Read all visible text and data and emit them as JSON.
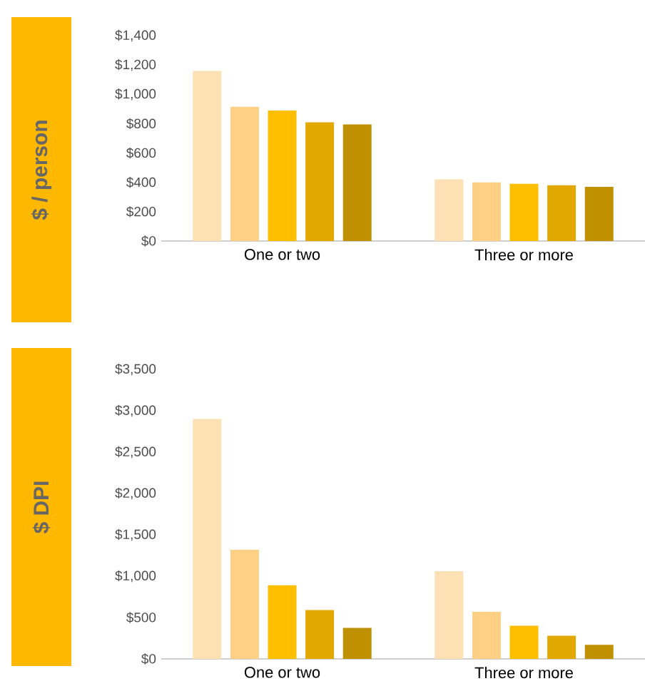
{
  "chart_data": [
    {
      "type": "bar",
      "ylabel": "$ / person",
      "categories": [
        "One or two",
        "Three or more"
      ],
      "series": [
        {
          "color": "#fde0b4",
          "values": [
            1160,
            420
          ]
        },
        {
          "color": "#fdd085",
          "values": [
            915,
            400
          ]
        },
        {
          "color": "#fdbf00",
          "values": [
            890,
            390
          ]
        },
        {
          "color": "#e0a800",
          "values": [
            810,
            380
          ]
        },
        {
          "color": "#bf9000",
          "values": [
            795,
            370
          ]
        }
      ],
      "ylim": [
        0,
        1400
      ],
      "yticks": [
        {
          "value": 0,
          "label": "$0"
        },
        {
          "value": 200,
          "label": "$200"
        },
        {
          "value": 400,
          "label": "$400"
        },
        {
          "value": 600,
          "label": "$600"
        },
        {
          "value": 800,
          "label": "$800"
        },
        {
          "value": 1000,
          "label": "$1,000"
        },
        {
          "value": 1200,
          "label": "$1,200"
        },
        {
          "value": 1400,
          "label": "$1,400"
        }
      ]
    },
    {
      "type": "bar",
      "ylabel": "$ DPI",
      "categories": [
        "One or two",
        "Three or more"
      ],
      "series": [
        {
          "color": "#fde0b4",
          "values": [
            2900,
            1060
          ]
        },
        {
          "color": "#fdd085",
          "values": [
            1320,
            570
          ]
        },
        {
          "color": "#fdbf00",
          "values": [
            890,
            400
          ]
        },
        {
          "color": "#e0a800",
          "values": [
            590,
            280
          ]
        },
        {
          "color": "#bf9000",
          "values": [
            375,
            170
          ]
        }
      ],
      "ylim": [
        0,
        3500
      ],
      "yticks": [
        {
          "value": 0,
          "label": "$0"
        },
        {
          "value": 500,
          "label": "$500"
        },
        {
          "value": 1000,
          "label": "$1,000"
        },
        {
          "value": 1500,
          "label": "$1,500"
        },
        {
          "value": 2000,
          "label": "$2,000"
        },
        {
          "value": 2500,
          "label": "$2,500"
        },
        {
          "value": 3000,
          "label": "$3,000"
        },
        {
          "value": 3500,
          "label": "$3,500"
        }
      ]
    }
  ]
}
